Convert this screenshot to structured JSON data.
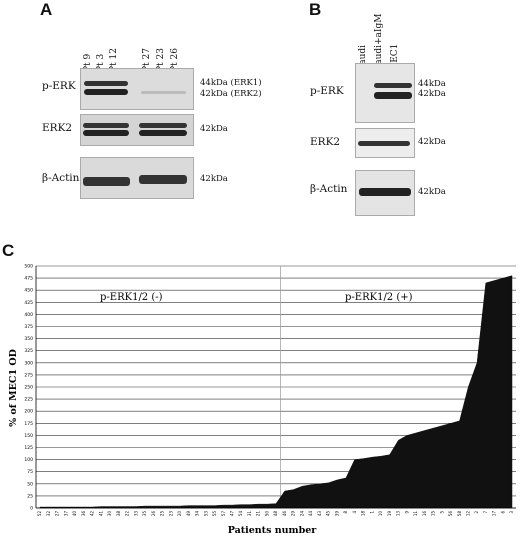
{
  "panel_a": {
    "letter": "A",
    "lanes": [
      "Pt 9",
      "Pt 3",
      "Pt 12",
      "Pt 27",
      "Pt 23",
      "Pt 26"
    ],
    "rows": [
      "p-ERK",
      "ERK2",
      "β-Actin"
    ],
    "mw_perk": [
      "44kDa (ERK1)",
      "42kDa (ERK2)"
    ],
    "mw_erk2": "42kDa",
    "mw_actin": "42kDa"
  },
  "panel_b": {
    "letter": "B",
    "lanes": [
      "Daudi",
      "Daudi+aIgM",
      "MEC1"
    ],
    "rows": [
      "p-ERK",
      "ERK2",
      "β-Actin"
    ],
    "mw_perk": [
      "44kDa",
      "42kDa"
    ],
    "mw_erk2": "42kDa",
    "mw_actin": "42kDa"
  },
  "panel_c": {
    "letter": "C"
  },
  "chart_data": {
    "type": "area",
    "title": "",
    "xlabel": "Patients number",
    "ylabel": "% of MEC1 OD",
    "ylim": [
      0,
      500
    ],
    "yticks": [
      0,
      25,
      50,
      75,
      100,
      125,
      150,
      175,
      200,
      225,
      250,
      275,
      300,
      325,
      350,
      375,
      400,
      425,
      450,
      475,
      500
    ],
    "grid": true,
    "annotations": [
      "p-ERK1/2 (-)",
      "p-ERK1/2 (+)"
    ],
    "categories": [
      "52",
      "32",
      "27",
      "37",
      "40",
      "36",
      "42",
      "41",
      "30",
      "38",
      "22",
      "33",
      "35",
      "26",
      "25",
      "23",
      "20",
      "49",
      "34",
      "53",
      "55",
      "57",
      "47",
      "54",
      "31",
      "21",
      "50",
      "48",
      "46",
      "29",
      "24",
      "44",
      "43",
      "45",
      "39",
      "8",
      "4",
      "18",
      "1",
      "10",
      "19",
      "13",
      "9",
      "11",
      "16",
      "15",
      "5",
      "56",
      "58",
      "12",
      "2",
      "7",
      "17",
      "6",
      "3"
    ],
    "values": [
      2,
      2,
      2,
      2,
      2,
      2,
      2,
      3,
      3,
      3,
      3,
      3,
      4,
      4,
      4,
      4,
      4,
      5,
      5,
      5,
      5,
      6,
      6,
      7,
      7,
      8,
      8,
      9,
      35,
      38,
      45,
      48,
      50,
      52,
      58,
      62,
      100,
      102,
      105,
      107,
      110,
      140,
      150,
      155,
      160,
      165,
      170,
      175,
      180,
      250,
      300,
      465,
      470,
      475,
      480
    ],
    "divider_after_index": 27
  }
}
